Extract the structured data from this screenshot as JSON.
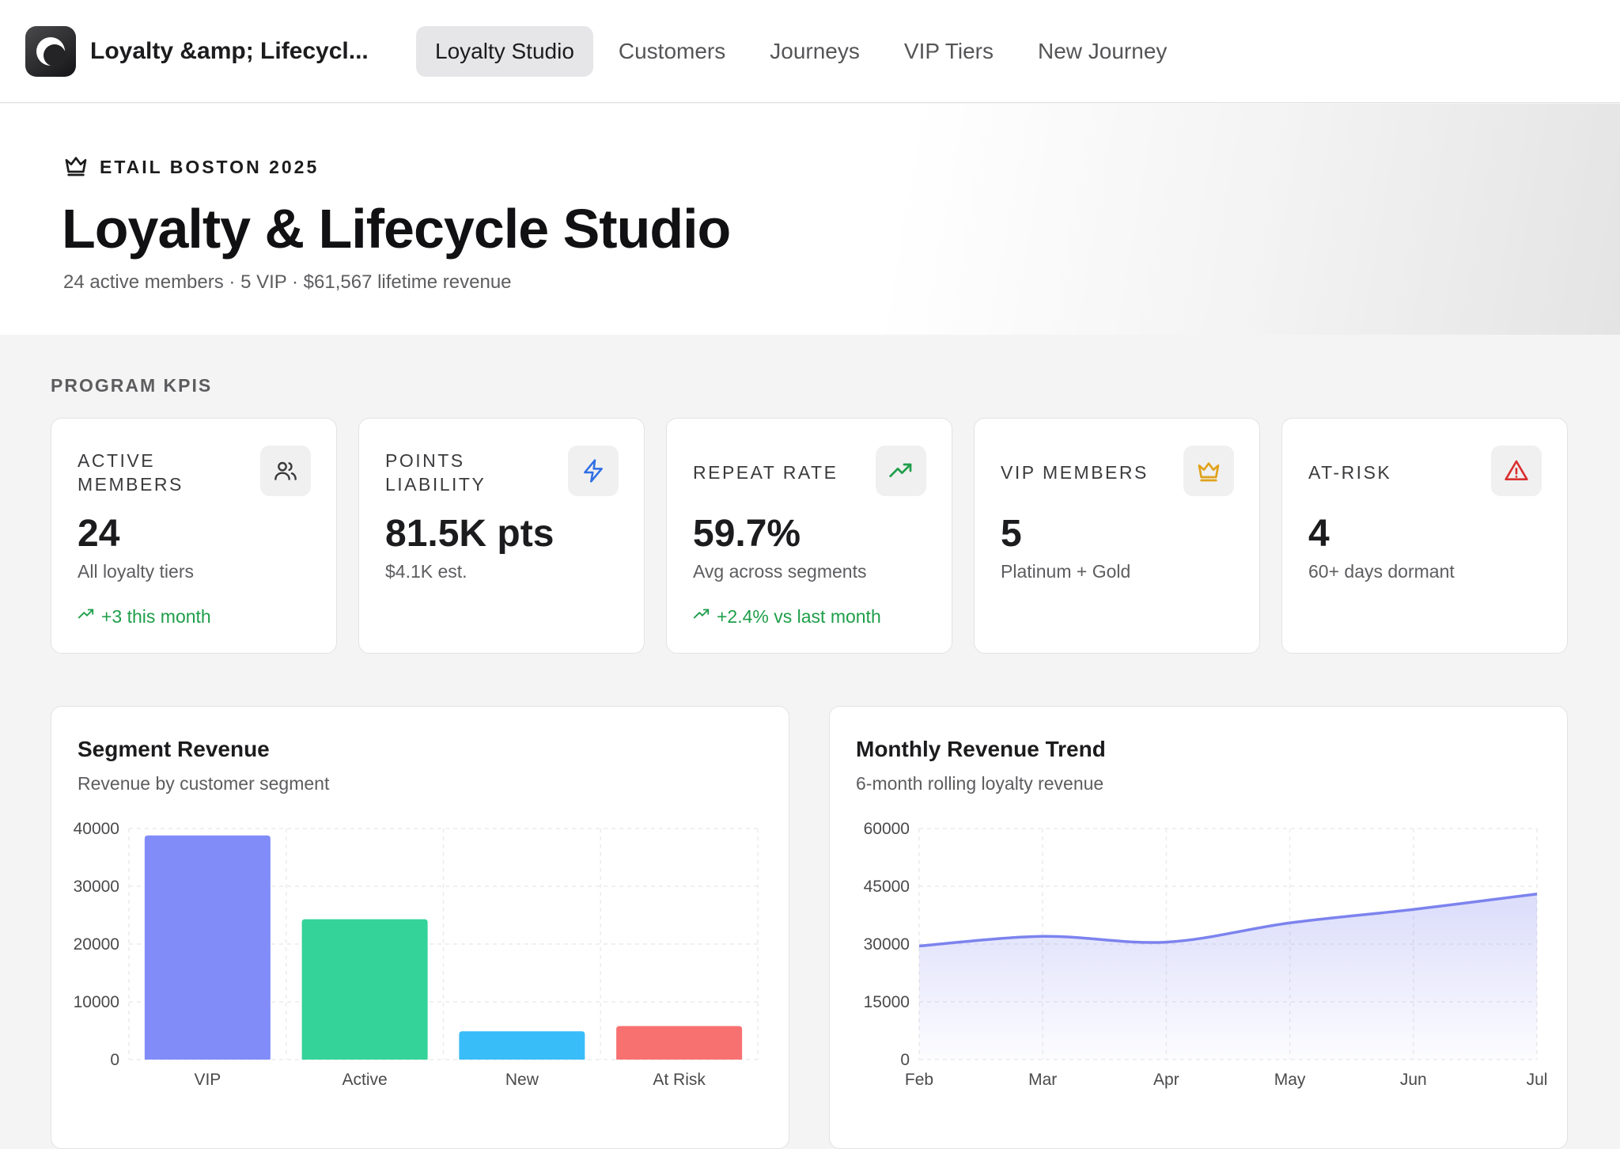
{
  "app": {
    "name": "Loyalty &amp; Lifecycl..."
  },
  "nav": {
    "items": [
      "Loyalty Studio",
      "Customers",
      "Journeys",
      "VIP Tiers",
      "New Journey"
    ],
    "active_index": 0
  },
  "hero": {
    "eyebrow": "ETAIL BOSTON 2025",
    "title": "Loyalty & Lifecycle Studio",
    "subtitle": "24 active members · 5 VIP · $61,567 lifetime revenue"
  },
  "kpis": {
    "section_label": "PROGRAM KPIS",
    "cards": [
      {
        "label": "ACTIVE MEMBERS",
        "value": "24",
        "sub": "All loyalty tiers",
        "delta": "+3 this month",
        "icon": "users-icon",
        "icon_color": "#3a3a3c"
      },
      {
        "label": "POINTS LIABILITY",
        "value": "81.5K pts",
        "sub": "$4.1K est.",
        "delta": "",
        "icon": "lightning-icon",
        "icon_color": "#2f6fe4"
      },
      {
        "label": "REPEAT RATE",
        "value": "59.7%",
        "sub": "Avg across segments",
        "delta": "+2.4% vs last month",
        "icon": "trending-up-icon",
        "icon_color": "#1e9e4a"
      },
      {
        "label": "VIP MEMBERS",
        "value": "5",
        "sub": "Platinum + Gold",
        "delta": "",
        "icon": "crown-icon",
        "icon_color": "#e0a21a"
      },
      {
        "label": "AT-RISK",
        "value": "4",
        "sub": "60+ days dormant",
        "delta": "",
        "icon": "warning-icon",
        "icon_color": "#d93030"
      }
    ]
  },
  "colors": {
    "positive": "#1e9e4a",
    "vip": "#818cf8",
    "active": "#34d399",
    "new": "#38bdf8",
    "at_risk": "#f87171",
    "trend_line": "#7c83ee"
  },
  "charts": {
    "segment": {
      "title": "Segment Revenue",
      "subtitle": "Revenue by customer segment"
    },
    "trend": {
      "title": "Monthly Revenue Trend",
      "subtitle": "6-month rolling loyalty revenue"
    }
  },
  "chart_data": [
    {
      "type": "bar",
      "title": "Segment Revenue",
      "subtitle": "Revenue by customer segment",
      "categories": [
        "VIP",
        "Active",
        "New",
        "At Risk"
      ],
      "values": [
        38800,
        24300,
        4900,
        5800
      ],
      "colors": [
        "#818cf8",
        "#34d399",
        "#38bdf8",
        "#f87171"
      ],
      "yticks": [
        0,
        10000,
        20000,
        30000,
        40000
      ],
      "ytick_labels": [
        "0",
        "10000",
        "20000",
        "30000",
        "40000"
      ],
      "ylim": [
        0,
        40000
      ],
      "grid": true
    },
    {
      "type": "area",
      "title": "Monthly Revenue Trend",
      "subtitle": "6-month rolling loyalty revenue",
      "categories": [
        "Feb",
        "Mar",
        "Apr",
        "May",
        "Jun",
        "Jul"
      ],
      "values": [
        29500,
        32000,
        30500,
        35500,
        39000,
        43000
      ],
      "yticks": [
        0,
        15000,
        30000,
        45000,
        60000
      ],
      "ytick_labels": [
        "0",
        "15000",
        "30000",
        "45000",
        "60000"
      ],
      "ylim": [
        0,
        60000
      ],
      "grid": true
    }
  ]
}
